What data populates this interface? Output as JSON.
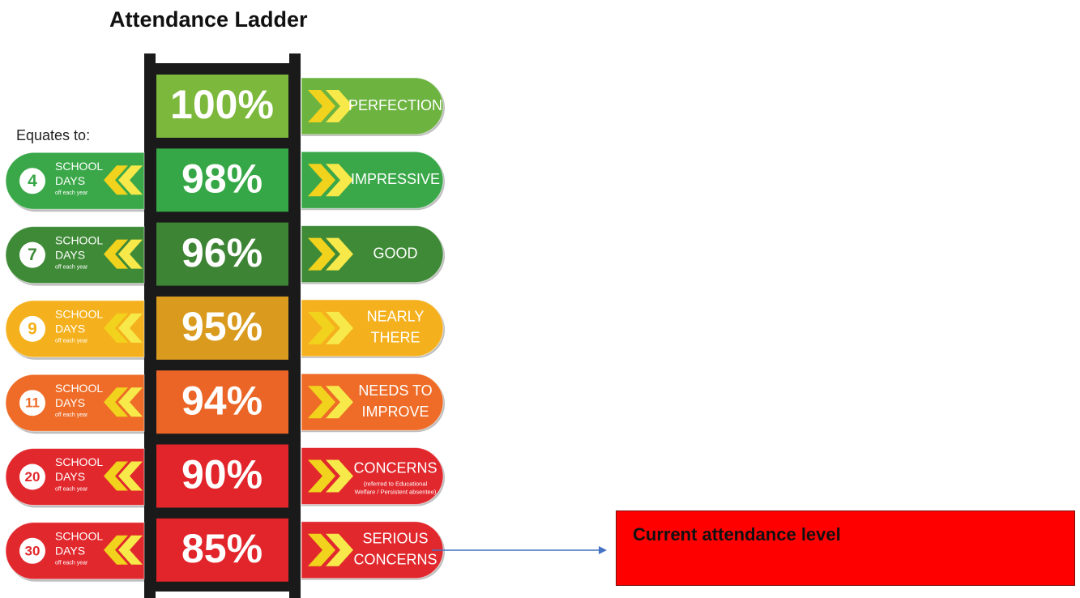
{
  "title": "Attendance Ladder",
  "equates_label": "Equates to:",
  "days_label": {
    "school": "SCHOOL",
    "days": "DAYS",
    "off": "off each year"
  },
  "rungs": [
    {
      "percent": "100%",
      "status": [
        "PERFECTION"
      ],
      "box_color": "#7cb83b",
      "pill_color": "#6db33f"
    },
    {
      "percent": "98%",
      "status": [
        "IMPRESSIVE"
      ],
      "days": "4",
      "box_color": "#36a746",
      "pill_color": "#3aa849"
    },
    {
      "percent": "96%",
      "status": [
        "GOOD"
      ],
      "days": "7",
      "box_color": "#3d8434",
      "pill_color": "#3f8a37"
    },
    {
      "percent": "95%",
      "status": [
        "NEARLY",
        "THERE"
      ],
      "days": "9",
      "box_color": "#d99a1e",
      "pill_color": "#f5b11d"
    },
    {
      "percent": "94%",
      "status": [
        "NEEDS TO",
        "IMPROVE"
      ],
      "days": "11",
      "box_color": "#ea6526",
      "pill_color": "#ee6c27"
    },
    {
      "percent": "90%",
      "status": [
        "CONCERNS"
      ],
      "sub": [
        "(referred to Educational",
        "Welfare / Persistent absentee)"
      ],
      "days": "20",
      "box_color": "#e1252a",
      "pill_color": "#e1282d"
    },
    {
      "percent": "85%",
      "status": [
        "SERIOUS",
        "CONCERNS"
      ],
      "days": "30",
      "box_color": "#e1252a",
      "pill_color": "#e1282d"
    }
  ],
  "callout": "Current attendance level"
}
